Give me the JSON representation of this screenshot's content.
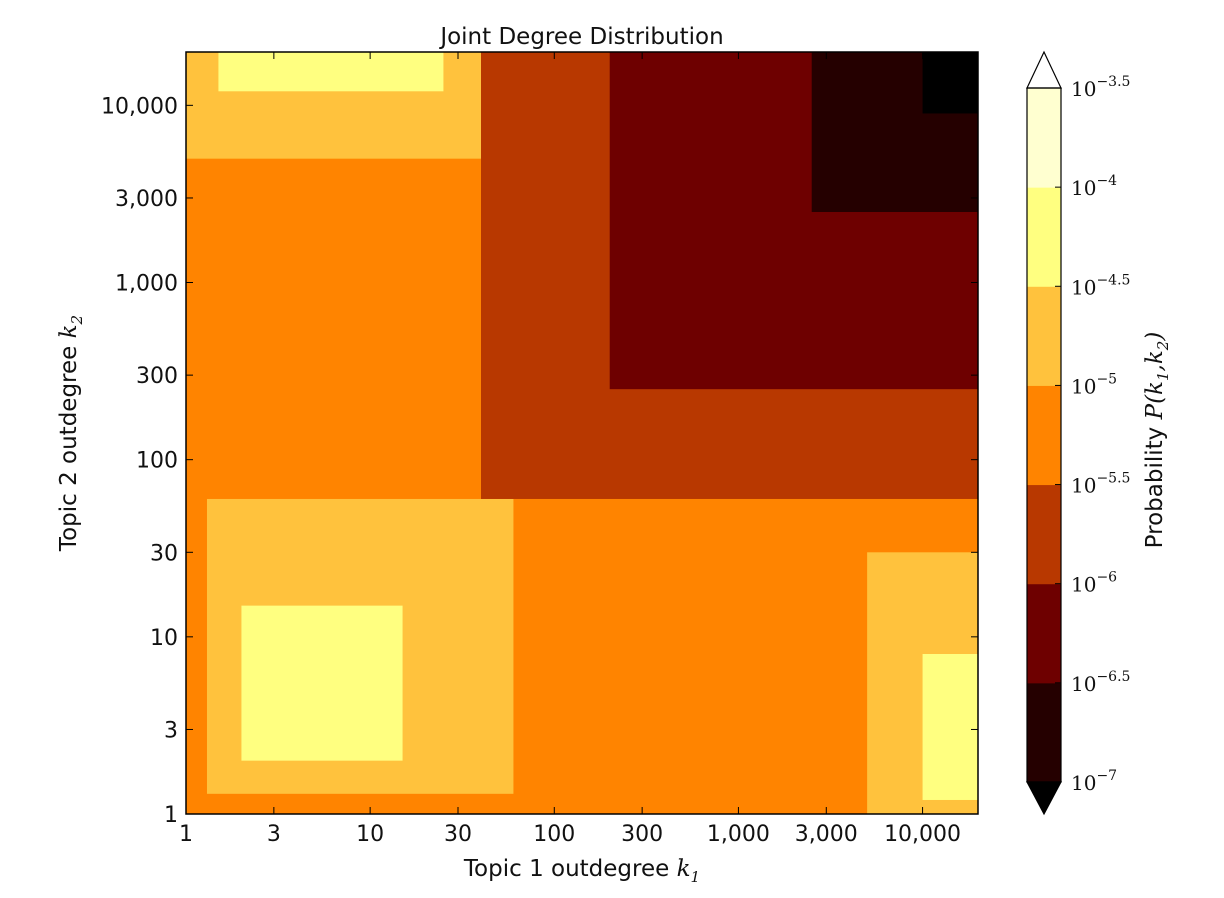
{
  "chart_data": {
    "type": "heatmap",
    "title": "Joint Degree Distribution",
    "x_scale": "log",
    "y_scale": "log",
    "xlim": [
      1,
      20000
    ],
    "ylim": [
      1,
      20000
    ],
    "xlabel": {
      "text": "Topic 1 outdegree ",
      "var": "k",
      "sub": "1"
    },
    "ylabel": {
      "text": "Topic 2 outdegree ",
      "var": "k",
      "sub": "2"
    },
    "x_ticks": [
      {
        "value": 1,
        "label": "1"
      },
      {
        "value": 3,
        "label": "3"
      },
      {
        "value": 10,
        "label": "10"
      },
      {
        "value": 30,
        "label": "30"
      },
      {
        "value": 100,
        "label": "100"
      },
      {
        "value": 300,
        "label": "300"
      },
      {
        "value": 1000,
        "label": "1,000"
      },
      {
        "value": 3000,
        "label": "3,000"
      },
      {
        "value": 10000,
        "label": "10,000"
      }
    ],
    "y_ticks": [
      {
        "value": 1,
        "label": "1"
      },
      {
        "value": 3,
        "label": "3"
      },
      {
        "value": 10,
        "label": "10"
      },
      {
        "value": 30,
        "label": "30"
      },
      {
        "value": 100,
        "label": "100"
      },
      {
        "value": 300,
        "label": "300"
      },
      {
        "value": 1000,
        "label": "1,000"
      },
      {
        "value": 3000,
        "label": "3,000"
      },
      {
        "value": 10000,
        "label": "10,000"
      }
    ],
    "colorbar": {
      "label": {
        "text": "Probability ",
        "math": "P(k1,k2)"
      },
      "extend": "both",
      "levels_log10": [
        -7,
        -6.5,
        -6,
        -5.5,
        -5,
        -4.5,
        -4,
        -3.5
      ],
      "tick_labels": [
        {
          "base": "10",
          "exp": "−7"
        },
        {
          "base": "10",
          "exp": "−6.5"
        },
        {
          "base": "10",
          "exp": "−6"
        },
        {
          "base": "10",
          "exp": "−5.5"
        },
        {
          "base": "10",
          "exp": "−5"
        },
        {
          "base": "10",
          "exp": "−4.5"
        },
        {
          "base": "10",
          "exp": "−4"
        },
        {
          "base": "10",
          "exp": "−3.5"
        }
      ],
      "colors": [
        "#000000",
        "#250000",
        "#6e0000",
        "#b83800",
        "#ff8400",
        "#ffc23d",
        "#ffff80",
        "#ffffd0",
        "#ffffff"
      ]
    },
    "approx_regions": [
      {
        "log10P": -5.25,
        "x_range": [
          1,
          20000
        ],
        "y_range": [
          1,
          20000
        ]
      },
      {
        "log10P": -4.75,
        "x_range": [
          1.3,
          60
        ],
        "y_range": [
          1.3,
          60
        ]
      },
      {
        "log10P": -4.75,
        "x_range": [
          5000,
          20000
        ],
        "y_range": [
          1,
          30
        ]
      },
      {
        "log10P": -4.75,
        "x_range": [
          1,
          100
        ],
        "y_range": [
          5000,
          20000
        ]
      },
      {
        "log10P": -4.25,
        "x_range": [
          2,
          15
        ],
        "y_range": [
          2,
          15
        ]
      },
      {
        "log10P": -4.25,
        "x_range": [
          10000,
          20000
        ],
        "y_range": [
          1.2,
          8
        ]
      },
      {
        "log10P": -4.25,
        "x_range": [
          1.5,
          25
        ],
        "y_range": [
          12000,
          20000
        ]
      },
      {
        "log10P": -5.75,
        "x_range": [
          40,
          20000
        ],
        "y_range": [
          60,
          20000
        ]
      },
      {
        "log10P": -6.25,
        "x_range": [
          200,
          20000
        ],
        "y_range": [
          250,
          20000
        ]
      },
      {
        "log10P": -6.75,
        "x_range": [
          2500,
          20000
        ],
        "y_range": [
          2500,
          20000
        ]
      },
      {
        "log10P": -7.25,
        "x_range": [
          10000,
          20000
        ],
        "y_range": [
          9000,
          20000
        ]
      }
    ]
  }
}
